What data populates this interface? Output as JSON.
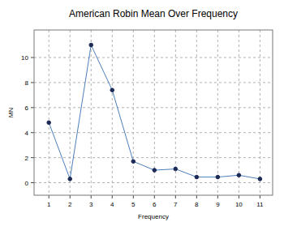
{
  "chart_data": {
    "type": "line",
    "title": "American Robin Mean Over Frequency",
    "x_label": "Frequency",
    "y_label": "MN",
    "x": [
      1,
      2,
      3,
      4,
      5,
      6,
      7,
      8,
      9,
      10,
      11
    ],
    "values": [
      4.8,
      0.3,
      11.0,
      7.4,
      1.7,
      1.0,
      1.1,
      0.45,
      0.45,
      0.6,
      0.3
    ],
    "color": "#4a7ebb",
    "marker": "circle",
    "xlim": [
      0.3,
      11.6
    ],
    "xticks": [
      1,
      2,
      3,
      4,
      5,
      6,
      7,
      8,
      9,
      10,
      11
    ],
    "ylim": [
      -1,
      12.2
    ],
    "yticks": [
      0,
      2,
      4,
      6,
      8,
      10
    ],
    "grid": true
  }
}
